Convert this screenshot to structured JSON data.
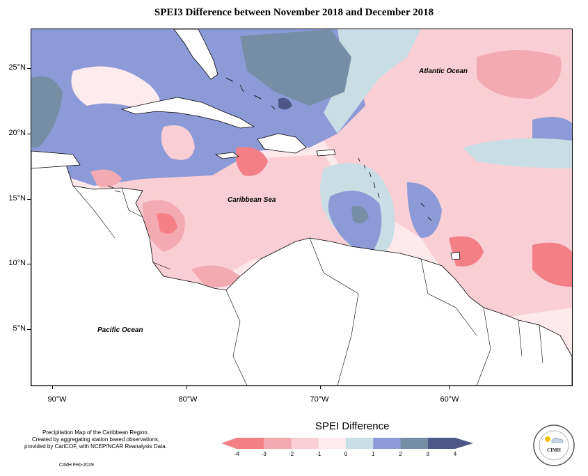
{
  "title": "SPEI3 Difference between November 2018 and December 2018",
  "map": {
    "ocean_labels": {
      "atlantic": "Atlantic Ocean",
      "caribbean": "Caribbean Sea",
      "pacific": "Pacific Ocean"
    },
    "lat_ticks": [
      "25°N",
      "20°N",
      "15°N",
      "10°N",
      "5°N"
    ],
    "lon_ticks": [
      "90°W",
      "80°W",
      "70°W",
      "60°W"
    ]
  },
  "legend": {
    "title": "SPEI Difference",
    "ticks": [
      "-4",
      "-3",
      "-2",
      "-1",
      "0",
      "1",
      "2",
      "3",
      "4"
    ],
    "colors": [
      "#f47f87",
      "#f3aab1",
      "#f9ced4",
      "#fdebee",
      "#c9dde4",
      "#8c9ad8",
      "#758ea6",
      "#4e5888"
    ]
  },
  "notes": {
    "line1": "Precipitation Map of the Caribbean Region.",
    "line2": "Created by aggregating station based observations,",
    "line3": "provided by CariCOF, with NCEP/NCAR Reanalysis Data.",
    "credit": "CIMH Feb-2019"
  },
  "logo": {
    "text": "CIMH"
  }
}
